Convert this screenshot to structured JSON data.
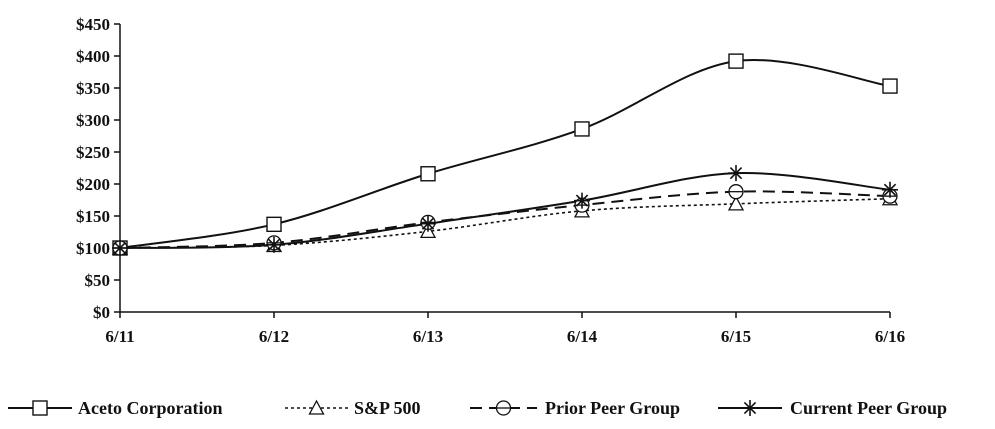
{
  "chart_data": {
    "type": "line",
    "title": "",
    "xlabel": "",
    "ylabel": "",
    "categories": [
      "6/11",
      "6/12",
      "6/13",
      "6/14",
      "6/15",
      "6/16"
    ],
    "y_ticks": [
      "$0",
      "$50",
      "$100",
      "$150",
      "$200",
      "$250",
      "$300",
      "$350",
      "$400",
      "$450"
    ],
    "ylim": [
      0,
      450
    ],
    "grid": false,
    "legend_position": "bottom",
    "series": [
      {
        "name": "Aceto Corporation",
        "marker": "square",
        "dash": "solid",
        "smooth": true,
        "values": [
          100,
          137,
          216,
          286,
          392,
          353
        ]
      },
      {
        "name": "S&P 500",
        "marker": "triangle",
        "dash": "dotted",
        "smooth": true,
        "values": [
          100,
          104,
          126,
          158,
          169,
          177
        ]
      },
      {
        "name": "Prior Peer Group",
        "marker": "circle",
        "dash": "dashed",
        "smooth": true,
        "values": [
          100,
          108,
          140,
          167,
          188,
          181
        ]
      },
      {
        "name": "Current Peer Group",
        "marker": "asterisk",
        "dash": "solid",
        "smooth": true,
        "values": [
          100,
          105,
          138,
          174,
          217,
          191
        ]
      }
    ]
  }
}
